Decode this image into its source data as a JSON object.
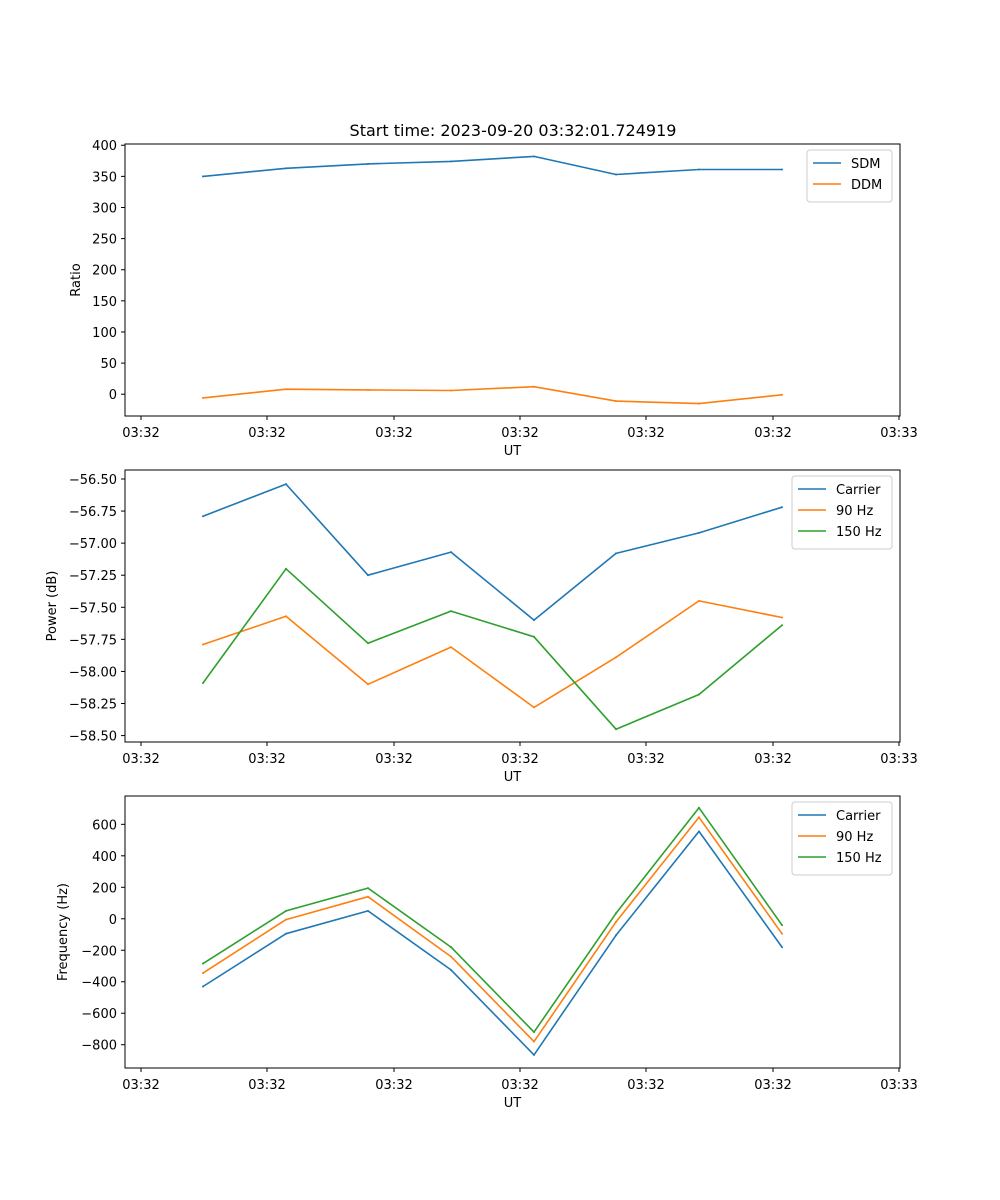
{
  "figure_title": "Start time: 2023-09-20 03:32:01.724919",
  "colors": {
    "blue": "#1f77b4",
    "orange": "#ff7f0e",
    "green": "#2ca02c"
  },
  "chart_data": [
    {
      "type": "line",
      "title": "Start time: 2023-09-20 03:32:01.724919",
      "xlabel": "UT",
      "ylabel": "Ratio",
      "x_index": [
        0,
        1,
        2,
        3,
        4,
        5,
        6,
        7
      ],
      "xlim": [
        -0.76,
        8.61
      ],
      "xticks": [
        -0.76,
        0.77,
        2.31,
        3.84,
        5.37,
        6.9,
        8.43
      ],
      "xtick_labels": [
        "03:32",
        "03:32",
        "03:32",
        "03:32",
        "03:32",
        "03:32",
        "03:32",
        "03:33"
      ],
      "xtick_values": [
        -0.76,
        0.76,
        2.29,
        3.82,
        5.34,
        6.87,
        8.39,
        8.61
      ],
      "ylim": [
        -35,
        402
      ],
      "yticks": [
        0,
        50,
        100,
        150,
        200,
        250,
        300,
        350,
        400
      ],
      "ytick_labels": [
        "0",
        "50",
        "100",
        "150",
        "200",
        "250",
        "300",
        "350",
        "400"
      ],
      "legend_position": "top-right",
      "series": [
        {
          "name": "SDM",
          "color": "#1f77b4",
          "values": [
            350,
            363,
            370,
            374,
            382,
            353,
            361,
            361
          ]
        },
        {
          "name": "DDM",
          "color": "#ff7f0e",
          "values": [
            -6,
            8,
            7,
            6,
            12,
            -11,
            -15,
            -1
          ]
        }
      ]
    },
    {
      "type": "line",
      "title": "",
      "xlabel": "UT",
      "ylabel": "Power (dB)",
      "x_index": [
        0,
        1,
        2,
        3,
        4,
        5,
        6,
        7
      ],
      "xlim": [
        -0.76,
        8.61
      ],
      "xtick_labels": [
        "03:32",
        "03:32",
        "03:32",
        "03:32",
        "03:32",
        "03:32",
        "03:32",
        "03:33"
      ],
      "xtick_values": [
        -0.76,
        0.76,
        2.29,
        3.82,
        5.34,
        6.87,
        8.39,
        8.61
      ],
      "ylim": [
        -58.55,
        -56.43
      ],
      "yticks": [
        -58.5,
        -58.25,
        -58.0,
        -57.75,
        -57.5,
        -57.25,
        -57.0,
        -56.75,
        -56.5
      ],
      "ytick_labels": [
        "−58.50",
        "−58.25",
        "−58.00",
        "−57.75",
        "−57.50",
        "−57.25",
        "−57.00",
        "−56.75",
        "−56.50"
      ],
      "legend_position": "top-right",
      "series": [
        {
          "name": "Carrier",
          "color": "#1f77b4",
          "values": [
            -56.79,
            -56.54,
            -57.25,
            -57.07,
            -57.6,
            -57.08,
            -56.92,
            -56.72
          ]
        },
        {
          "name": "90 Hz",
          "color": "#ff7f0e",
          "values": [
            -57.79,
            -57.57,
            -58.1,
            -57.81,
            -58.28,
            -57.89,
            -57.45,
            -57.58
          ]
        },
        {
          "name": "150 Hz",
          "color": "#2ca02c",
          "values": [
            -58.09,
            -57.2,
            -57.78,
            -57.53,
            -57.73,
            -58.45,
            -58.18,
            -57.64
          ]
        }
      ]
    },
    {
      "type": "line",
      "title": "",
      "xlabel": "UT",
      "ylabel": "Frequency (Hz)",
      "x_index": [
        0,
        1,
        2,
        3,
        4,
        5,
        6,
        7
      ],
      "xlim": [
        -0.76,
        8.61
      ],
      "xtick_labels": [
        "03:32",
        "03:32",
        "03:32",
        "03:32",
        "03:32",
        "03:32",
        "03:32",
        "03:33"
      ],
      "xtick_values": [
        -0.76,
        0.76,
        2.29,
        3.82,
        5.34,
        6.87,
        8.39,
        8.61
      ],
      "ylim": [
        -948,
        780
      ],
      "yticks": [
        -800,
        -600,
        -400,
        -200,
        0,
        200,
        400,
        600
      ],
      "ytick_labels": [
        "−800",
        "−600",
        "−400",
        "−200",
        "0",
        "200",
        "400",
        "600"
      ],
      "legend_position": "top-right",
      "series": [
        {
          "name": "Carrier",
          "color": "#1f77b4",
          "values": [
            -430,
            -95,
            50,
            -325,
            -865,
            -105,
            555,
            -180
          ]
        },
        {
          "name": "90 Hz",
          "color": "#ff7f0e",
          "values": [
            -345,
            -5,
            140,
            -240,
            -780,
            -20,
            645,
            -95
          ]
        },
        {
          "name": "150 Hz",
          "color": "#2ca02c",
          "values": [
            -285,
            50,
            195,
            -180,
            -720,
            35,
            705,
            -40
          ]
        }
      ]
    }
  ]
}
